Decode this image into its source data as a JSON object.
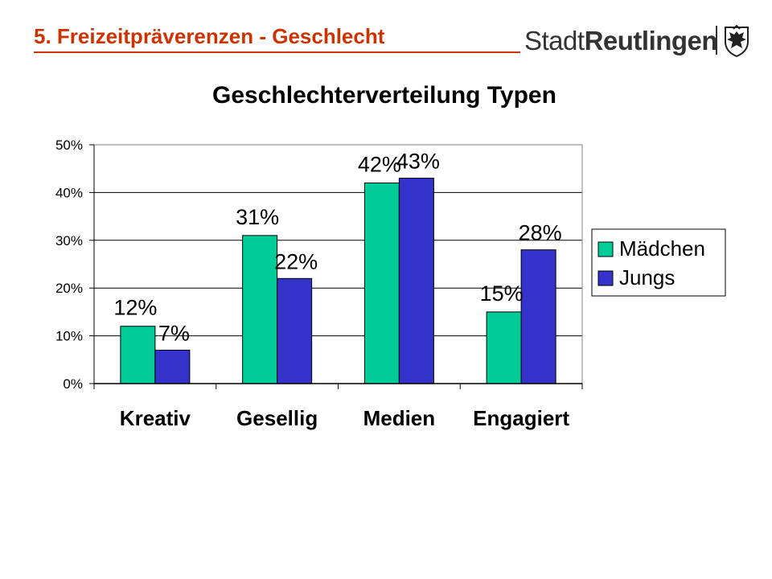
{
  "header": {
    "title": "5. Freizeitpräverenzen - Geschlecht",
    "brand_light": "Stadt",
    "brand_bold": "Reutlingen",
    "logo_icon": "city-crest-eagle-icon",
    "title_color": "#cc3300"
  },
  "chart_data": {
    "type": "bar",
    "title": "Geschlechterverteilung Typen",
    "categories": [
      "Kreativ",
      "Gesellig",
      "Medien",
      "Engagiert"
    ],
    "series": [
      {
        "name": "Mädchen",
        "color": "#00cc99",
        "values": [
          12,
          31,
          42,
          15
        ],
        "labels": [
          "12%",
          "31%",
          "42%",
          "15%"
        ]
      },
      {
        "name": "Jungs",
        "color": "#3333cc",
        "values": [
          7,
          22,
          43,
          28
        ],
        "labels": [
          "7%",
          "22%",
          "43%",
          "28%"
        ]
      }
    ],
    "ylim": [
      0,
      50
    ],
    "yticks": [
      0,
      10,
      20,
      30,
      40,
      50
    ],
    "ytick_labels": [
      "0%",
      "10%",
      "20%",
      "30%",
      "40%",
      "50%"
    ],
    "grid": true,
    "legend_position": "right"
  }
}
